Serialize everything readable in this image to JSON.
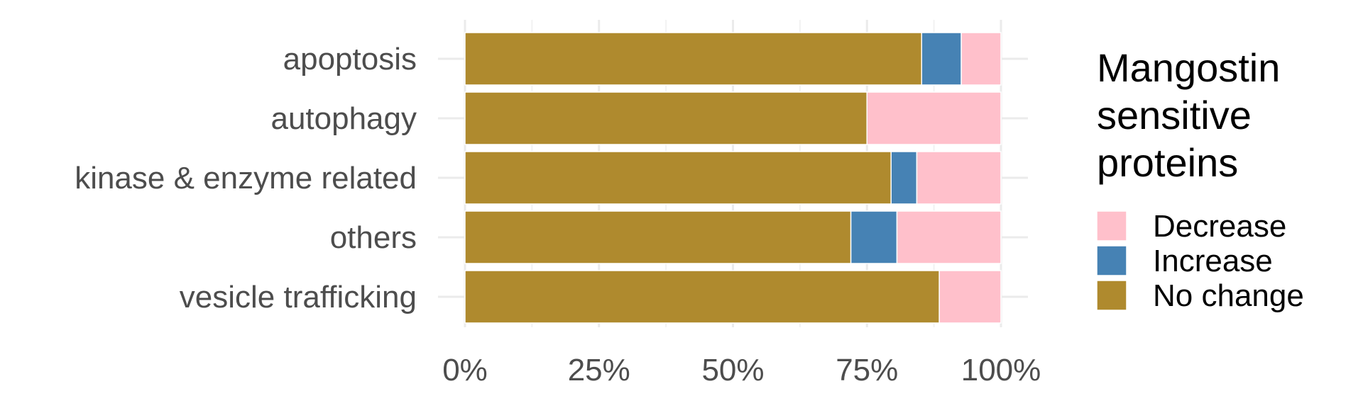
{
  "chart_data": {
    "type": "bar",
    "orientation": "horizontal",
    "stacked": true,
    "normalized": true,
    "categories": [
      "apoptosis",
      "autophagy",
      "kinase & enzyme related",
      "others",
      "vesicle trafficking"
    ],
    "series": [
      {
        "name": "No change",
        "color": "#AF8A2E",
        "values": [
          85.2,
          75.0,
          79.5,
          72.0,
          88.5
        ]
      },
      {
        "name": "Increase",
        "color": "#4682B4",
        "values": [
          7.4,
          0.0,
          4.8,
          8.6,
          0.0
        ]
      },
      {
        "name": "Decrease",
        "color": "#FFC0CB",
        "values": [
          7.4,
          25.0,
          15.7,
          19.4,
          11.5
        ]
      }
    ],
    "xaxis": {
      "ticks": [
        0,
        25,
        50,
        75,
        100
      ],
      "tick_labels": [
        "0%",
        "25%",
        "50%",
        "75%",
        "100%"
      ],
      "xlim": [
        0,
        100
      ]
    },
    "legend": {
      "title_lines": [
        "Mangostin",
        "sensitive",
        "proteins"
      ],
      "position": "right",
      "order": [
        "Decrease",
        "Increase",
        "No change"
      ]
    },
    "grid": true
  }
}
